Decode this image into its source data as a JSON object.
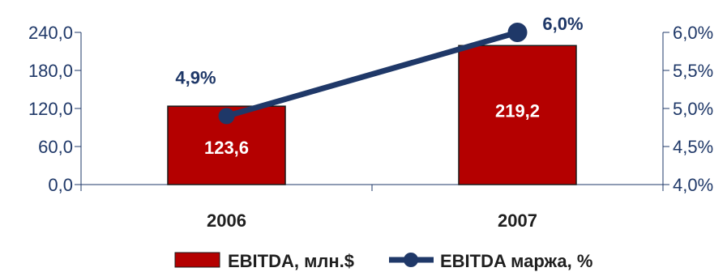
{
  "chart_data": {
    "type": "bar",
    "categories": [
      "2006",
      "2007"
    ],
    "series": [
      {
        "name": "EBITDA, млн.$",
        "kind": "bar",
        "axis": "left",
        "values": [
          123.6,
          219.2
        ],
        "labels": [
          "123,6",
          "219,2"
        ],
        "color": "#b40000"
      },
      {
        "name": "EBITDA маржа, %",
        "kind": "line",
        "axis": "right",
        "values": [
          4.9,
          6.0
        ],
        "labels": [
          "4,9%",
          "6,0%"
        ],
        "color": "#1f3868"
      }
    ],
    "left_axis": {
      "ylim": [
        0,
        240
      ],
      "ticks": [
        0,
        60,
        120,
        180,
        240
      ],
      "tick_labels": [
        "0,0",
        "60,0",
        "120,0",
        "180,0",
        "240,0"
      ]
    },
    "right_axis": {
      "ylim": [
        4.0,
        6.0
      ],
      "ticks": [
        4.0,
        4.5,
        5.0,
        5.5,
        6.0
      ],
      "tick_labels": [
        "4,0%",
        "4,5%",
        "5,0%",
        "5,5%",
        "6,0%"
      ]
    },
    "title": "",
    "xlabel": "",
    "ylabel": "",
    "grid": false,
    "legend_position": "bottom",
    "axis_color": "#1f3868"
  }
}
